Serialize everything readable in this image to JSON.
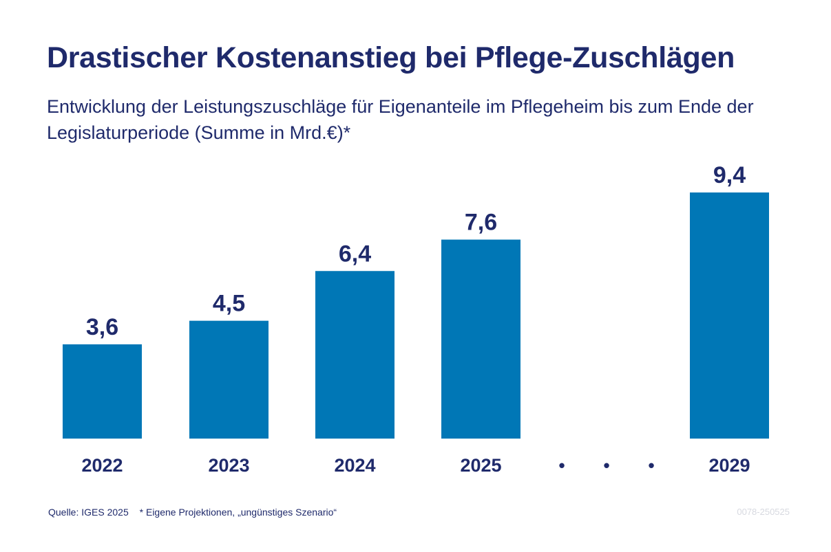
{
  "title": "Drastischer Kostenanstieg bei Pflege-Zuschlägen",
  "subtitle": "Entwicklung der Leistungszuschläge für Eigenanteile im Pflegeheim bis zum Ende der Legislaturperiode (Summe in Mrd.€)*",
  "source": "Quelle: IGES 2025",
  "note": "* Eigene Projektionen, „ungünstiges Szenario“",
  "code": "0078-250525",
  "colors": {
    "bar": "#0077b6",
    "text": "#1f2a6b",
    "muted": "#d7d9e0"
  },
  "chart_data": {
    "type": "bar",
    "categories": [
      "2022",
      "2023",
      "2024",
      "2025",
      "2029"
    ],
    "values": [
      3.6,
      4.5,
      6.4,
      7.6,
      9.4
    ],
    "value_labels": [
      "3,6",
      "4,5",
      "6,4",
      "7,6",
      "9,4"
    ],
    "gap_marker": "• • •",
    "gap_after_index": 3,
    "ylim": [
      0,
      9.4
    ],
    "grid": false
  }
}
